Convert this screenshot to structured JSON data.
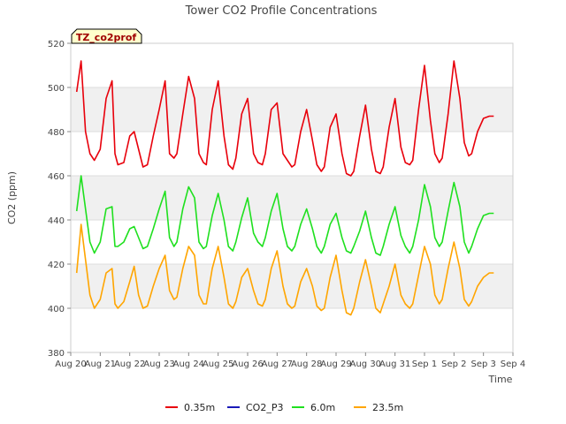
{
  "chart_data": {
    "type": "line",
    "title": "Tower CO2 Profile Concentrations",
    "xlabel": "Time",
    "ylabel": "CO2 (ppm)",
    "site_label": "TZ_co2prof",
    "xlim": [
      0,
      15
    ],
    "ylim": [
      380,
      520
    ],
    "x_tick_values": [
      0,
      1,
      2,
      3,
      4,
      5,
      6,
      7,
      8,
      9,
      10,
      11,
      12,
      13,
      14,
      15
    ],
    "x_tick_labels": [
      "Aug 20",
      "Aug 21",
      "Aug 22",
      "Aug 23",
      "Aug 24",
      "Aug 25",
      "Aug 26",
      "Aug 27",
      "Aug 28",
      "Aug 29",
      "Aug 30",
      "Aug 31",
      "Sep 1",
      "Sep 2",
      "Sep 3",
      "Sep 4"
    ],
    "y_ticks": [
      380,
      400,
      420,
      440,
      460,
      480,
      500,
      520
    ],
    "grid": true,
    "legend_position": "bottom",
    "x_units": "days since Aug 20",
    "series": [
      {
        "name": "0.35m",
        "color": "#e8000b",
        "x": [
          0.2,
          0.35,
          0.5,
          0.65,
          0.8,
          1.0,
          1.2,
          1.4,
          1.5,
          1.6,
          1.8,
          2.0,
          2.15,
          2.3,
          2.45,
          2.6,
          2.8,
          3.0,
          3.2,
          3.35,
          3.5,
          3.6,
          3.8,
          4.0,
          4.2,
          4.35,
          4.5,
          4.6,
          4.8,
          5.0,
          5.2,
          5.35,
          5.5,
          5.6,
          5.8,
          6.0,
          6.2,
          6.35,
          6.5,
          6.6,
          6.8,
          7.0,
          7.2,
          7.35,
          7.5,
          7.6,
          7.8,
          8.0,
          8.2,
          8.35,
          8.5,
          8.6,
          8.8,
          9.0,
          9.2,
          9.35,
          9.5,
          9.6,
          9.8,
          10.0,
          10.2,
          10.35,
          10.5,
          10.6,
          10.8,
          11.0,
          11.2,
          11.35,
          11.5,
          11.6,
          11.8,
          12.0,
          12.2,
          12.35,
          12.5,
          12.6,
          12.8,
          13.0,
          13.2,
          13.35,
          13.5,
          13.6,
          13.8,
          14.0,
          14.2,
          14.35
        ],
        "y": [
          498,
          512,
          480,
          470,
          467,
          472,
          495,
          503,
          470,
          465,
          466,
          478,
          480,
          472,
          464,
          465,
          478,
          490,
          503,
          470,
          468,
          470,
          488,
          505,
          495,
          470,
          466,
          465,
          490,
          503,
          478,
          465,
          463,
          468,
          488,
          495,
          470,
          466,
          465,
          470,
          490,
          493,
          470,
          467,
          464,
          465,
          480,
          490,
          476,
          465,
          462,
          464,
          482,
          488,
          470,
          461,
          460,
          462,
          478,
          492,
          472,
          462,
          461,
          464,
          482,
          495,
          473,
          466,
          465,
          467,
          490,
          510,
          485,
          470,
          466,
          468,
          488,
          512,
          495,
          475,
          469,
          470,
          480,
          486,
          487,
          487
        ]
      },
      {
        "name": "CO2_P3",
        "color": "#1a1ab8",
        "x": [],
        "y": []
      },
      {
        "name": "6.0m",
        "color": "#1fe01f",
        "x": [
          0.2,
          0.35,
          0.5,
          0.65,
          0.8,
          1.0,
          1.2,
          1.4,
          1.5,
          1.6,
          1.8,
          2.0,
          2.15,
          2.3,
          2.45,
          2.6,
          2.8,
          3.0,
          3.2,
          3.35,
          3.5,
          3.6,
          3.8,
          4.0,
          4.2,
          4.35,
          4.5,
          4.6,
          4.8,
          5.0,
          5.2,
          5.35,
          5.5,
          5.6,
          5.8,
          6.0,
          6.2,
          6.35,
          6.5,
          6.6,
          6.8,
          7.0,
          7.2,
          7.35,
          7.5,
          7.6,
          7.8,
          8.0,
          8.2,
          8.35,
          8.5,
          8.6,
          8.8,
          9.0,
          9.2,
          9.35,
          9.5,
          9.6,
          9.8,
          10.0,
          10.2,
          10.35,
          10.5,
          10.6,
          10.8,
          11.0,
          11.2,
          11.35,
          11.5,
          11.6,
          11.8,
          12.0,
          12.2,
          12.35,
          12.5,
          12.6,
          12.8,
          13.0,
          13.2,
          13.35,
          13.5,
          13.6,
          13.8,
          14.0,
          14.2,
          14.35
        ],
        "y": [
          444,
          460,
          445,
          430,
          425,
          430,
          445,
          446,
          428,
          428,
          430,
          436,
          437,
          432,
          427,
          428,
          436,
          445,
          453,
          432,
          428,
          430,
          445,
          455,
          450,
          430,
          427,
          428,
          442,
          452,
          440,
          428,
          426,
          430,
          441,
          450,
          434,
          430,
          428,
          432,
          444,
          452,
          436,
          428,
          426,
          428,
          438,
          445,
          436,
          428,
          425,
          428,
          438,
          443,
          432,
          426,
          425,
          428,
          435,
          444,
          432,
          425,
          424,
          428,
          438,
          446,
          433,
          428,
          425,
          428,
          440,
          456,
          446,
          432,
          428,
          430,
          444,
          457,
          446,
          430,
          425,
          428,
          436,
          442,
          443,
          443
        ]
      },
      {
        "name": "23.5m",
        "color": "#ffa500",
        "x": [
          0.2,
          0.35,
          0.5,
          0.65,
          0.8,
          1.0,
          1.2,
          1.4,
          1.5,
          1.6,
          1.8,
          2.0,
          2.15,
          2.3,
          2.45,
          2.6,
          2.8,
          3.0,
          3.2,
          3.35,
          3.5,
          3.6,
          3.8,
          4.0,
          4.2,
          4.35,
          4.5,
          4.6,
          4.8,
          5.0,
          5.2,
          5.35,
          5.5,
          5.6,
          5.8,
          6.0,
          6.2,
          6.35,
          6.5,
          6.6,
          6.8,
          7.0,
          7.2,
          7.35,
          7.5,
          7.6,
          7.8,
          8.0,
          8.2,
          8.35,
          8.5,
          8.6,
          8.8,
          9.0,
          9.2,
          9.35,
          9.5,
          9.6,
          9.8,
          10.0,
          10.2,
          10.35,
          10.5,
          10.6,
          10.8,
          11.0,
          11.2,
          11.35,
          11.5,
          11.6,
          11.8,
          12.0,
          12.2,
          12.35,
          12.5,
          12.6,
          12.8,
          13.0,
          13.2,
          13.35,
          13.5,
          13.6,
          13.8,
          14.0,
          14.2,
          14.35
        ],
        "y": [
          416,
          438,
          422,
          406,
          400,
          404,
          416,
          418,
          402,
          400,
          403,
          412,
          419,
          406,
          400,
          401,
          410,
          418,
          424,
          408,
          404,
          405,
          418,
          428,
          424,
          406,
          402,
          402,
          418,
          428,
          414,
          402,
          400,
          403,
          414,
          418,
          408,
          402,
          401,
          404,
          418,
          426,
          410,
          402,
          400,
          401,
          412,
          418,
          410,
          401,
          399,
          400,
          414,
          424,
          408,
          398,
          397,
          400,
          412,
          422,
          410,
          400,
          398,
          402,
          410,
          420,
          406,
          402,
          400,
          402,
          415,
          428,
          420,
          406,
          402,
          404,
          418,
          430,
          418,
          404,
          401,
          403,
          410,
          414,
          416,
          416
        ]
      }
    ]
  }
}
